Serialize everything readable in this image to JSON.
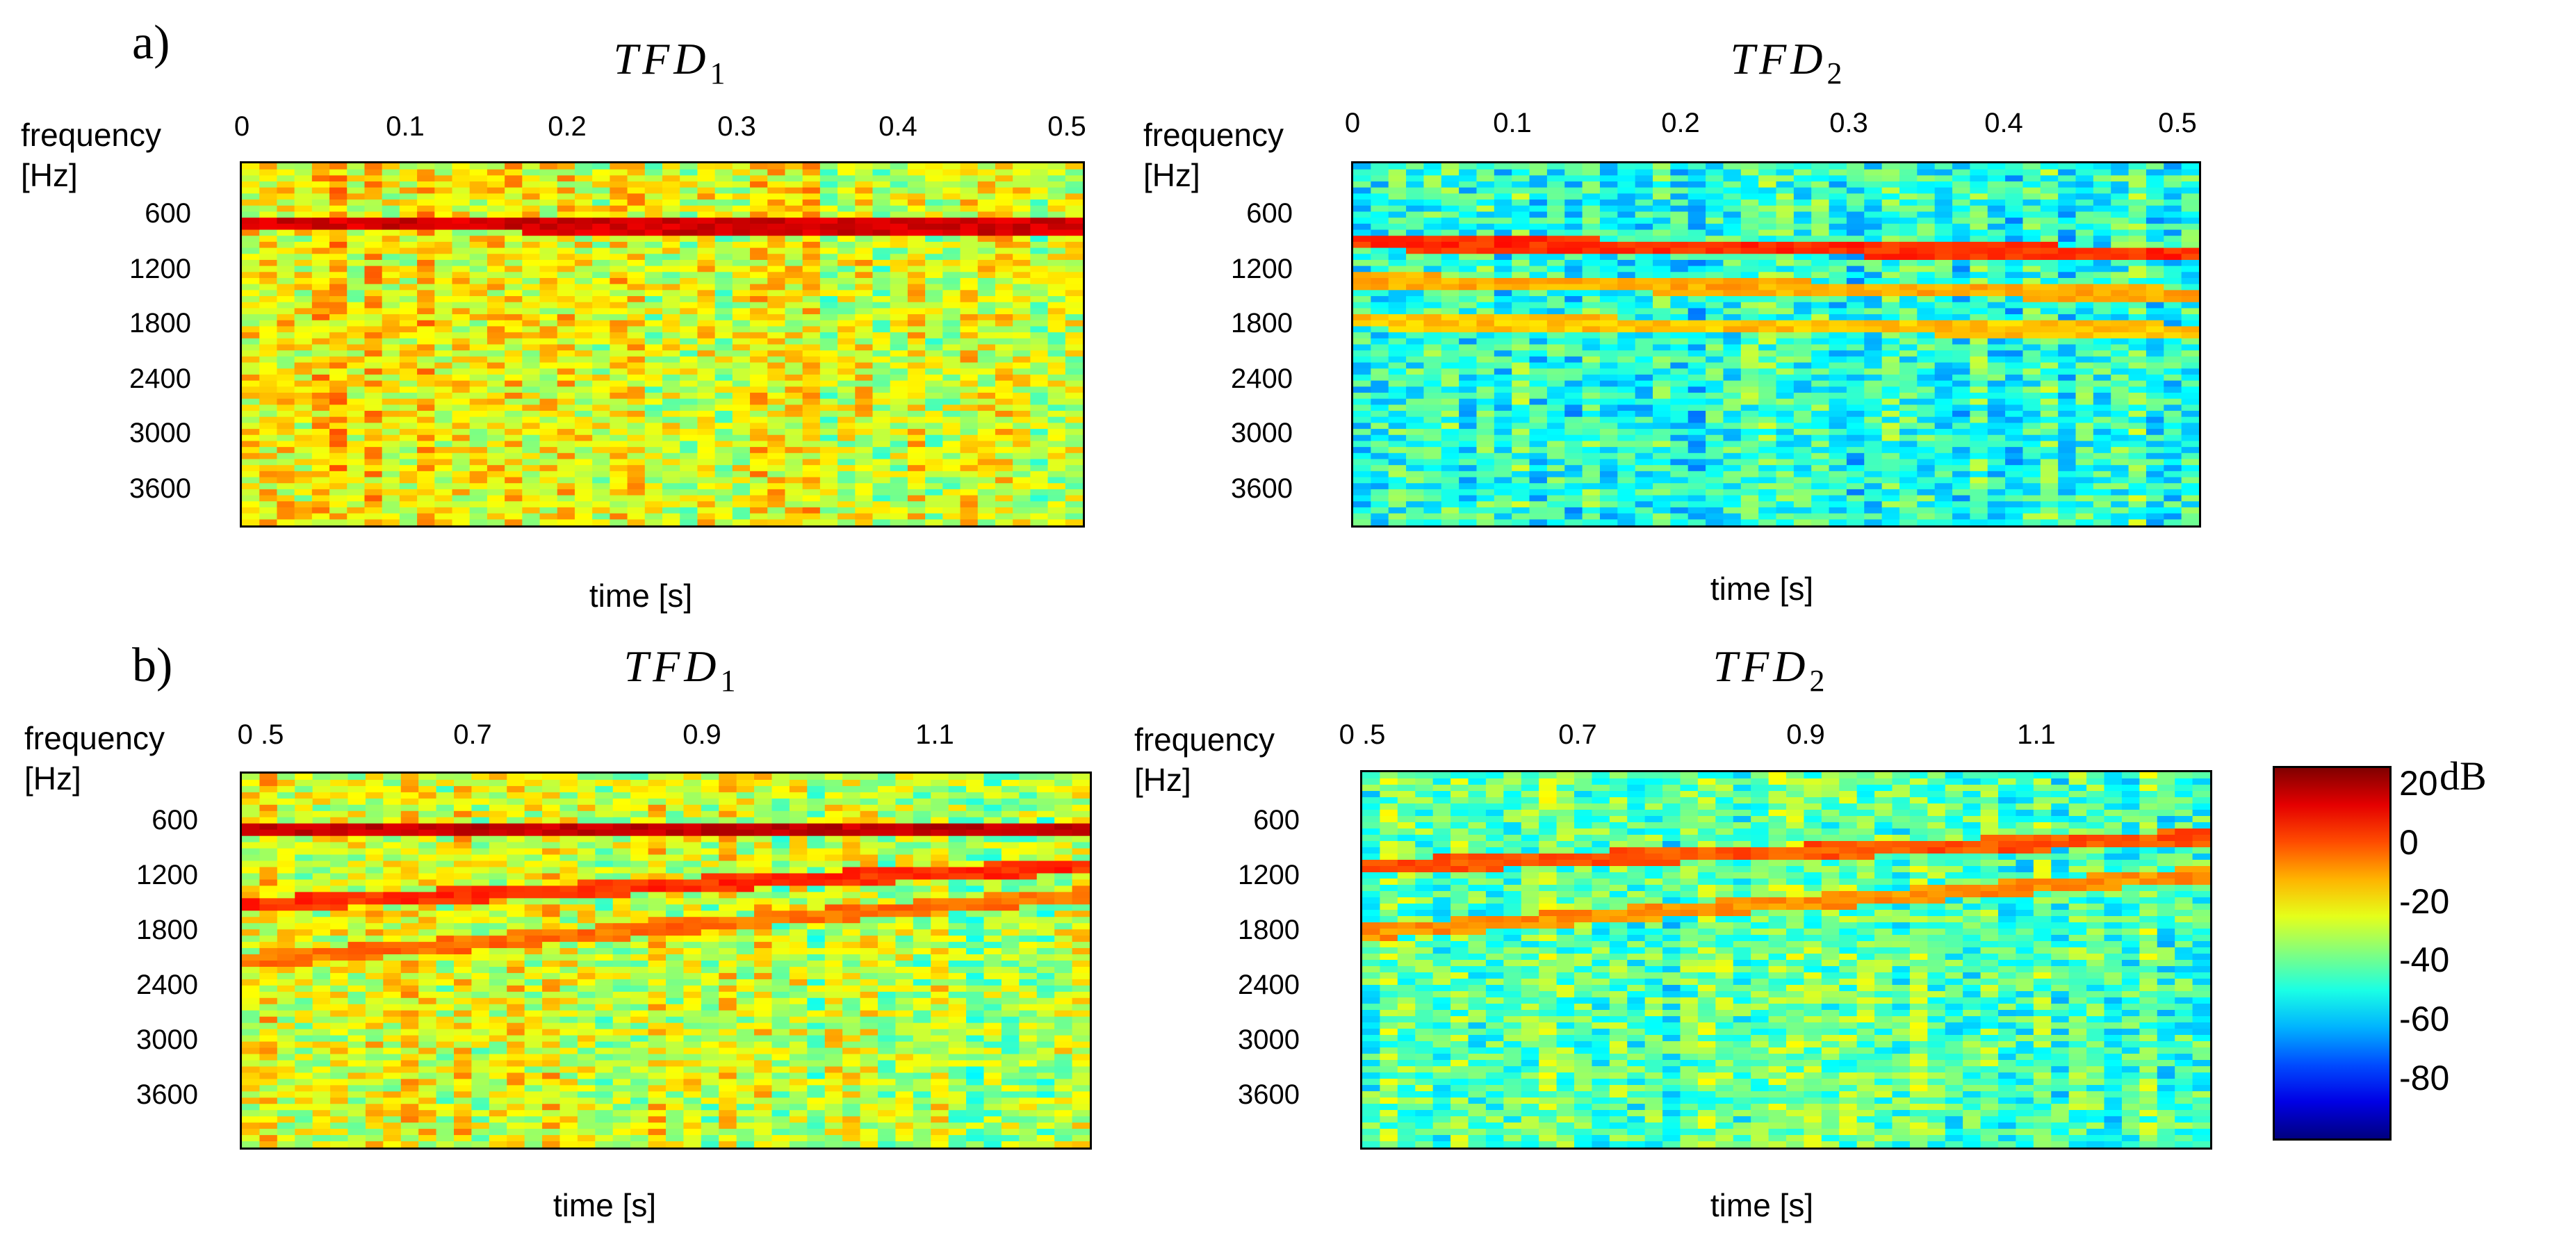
{
  "panel_letters": [
    "a)",
    "b)"
  ],
  "chart_data": [
    {
      "type": "heatmap",
      "id": "a1",
      "title_main": "TFD",
      "title_sub": "1",
      "ylabel": "frequency",
      "ylabel_unit": "[Hz]",
      "xlabel": "time [s]",
      "xticks": [
        "0",
        "0.1",
        "0.2",
        "0.3",
        "0.4",
        "0.5"
      ],
      "yticks": [
        "600",
        "1200",
        "1800",
        "2400",
        "3000",
        "3600"
      ],
      "xlim": [
        0,
        0.51
      ],
      "ylim": [
        0,
        4000
      ],
      "colormap": "jet",
      "clim_dB": [
        -100,
        20
      ],
      "background_dB": -22,
      "ridges": [
        {
          "f_start": 680,
          "f_end": 700,
          "level_dB": 10
        }
      ]
    },
    {
      "type": "heatmap",
      "id": "a2",
      "title_main": "TFD",
      "title_sub": "2",
      "ylabel": "frequency",
      "ylabel_unit": "[Hz]",
      "xlabel": "time [s]",
      "xticks": [
        "0",
        "0.1",
        "0.2",
        "0.3",
        "0.4",
        "0.5"
      ],
      "yticks": [
        "600",
        "1200",
        "1800",
        "2400",
        "3000",
        "3600"
      ],
      "xlim": [
        0,
        0.51
      ],
      "ylim": [
        0,
        4000
      ],
      "colormap": "jet",
      "clim_dB": [
        -100,
        20
      ],
      "background_dB": -50,
      "ridges": [
        {
          "f_start": 880,
          "f_end": 1000,
          "level_dB": 0
        },
        {
          "f_start": 1300,
          "f_end": 1450,
          "level_dB": -15
        },
        {
          "f_start": 1750,
          "f_end": 1850,
          "level_dB": -18
        }
      ]
    },
    {
      "type": "heatmap",
      "id": "b1",
      "title_main": "TFD",
      "title_sub": "1",
      "ylabel": "frequency",
      "ylabel_unit": "[Hz]",
      "xlabel": "time [s]",
      "xticks": [
        ".5",
        "0.7",
        "0.9",
        "1.1"
      ],
      "ylabel_prefix": "0",
      "yticks": [
        "600",
        "1200",
        "1800",
        "2400",
        "3000",
        "3600"
      ],
      "xlim": [
        0.49,
        1.22
      ],
      "ylim": [
        0,
        4000
      ],
      "colormap": "jet",
      "clim_dB": [
        -100,
        20
      ],
      "background_dB": -25,
      "ridges": [
        {
          "f_start": 600,
          "f_end": 620,
          "level_dB": 12
        },
        {
          "f_start": 1400,
          "f_end": 1000,
          "level_dB": 0
        },
        {
          "f_start": 2000,
          "f_end": 1300,
          "level_dB": -8
        }
      ]
    },
    {
      "type": "heatmap",
      "id": "b2",
      "title_main": "TFD",
      "title_sub": "2",
      "ylabel": "frequency",
      "ylabel_unit": "[Hz]",
      "xlabel": "time [s]",
      "xticks": [
        ".5",
        "0.7",
        "0.9",
        "1.1"
      ],
      "ylabel_prefix": "0",
      "yticks": [
        "600",
        "1200",
        "1800",
        "2400",
        "3000",
        "3600"
      ],
      "xlim": [
        0.49,
        1.22
      ],
      "ylim": [
        0,
        4000
      ],
      "colormap": "jet",
      "clim_dB": [
        -100,
        20
      ],
      "background_dB": -45,
      "ridges": [
        {
          "f_start": 1000,
          "f_end": 700,
          "level_dB": -5
        },
        {
          "f_start": 1700,
          "f_end": 1100,
          "level_dB": -12
        }
      ]
    }
  ],
  "colorbar": {
    "unit": "dB",
    "ticks": [
      "20",
      "0",
      "-20",
      "-40",
      "-60",
      "-80"
    ],
    "range_dB": [
      -100,
      20
    ]
  }
}
